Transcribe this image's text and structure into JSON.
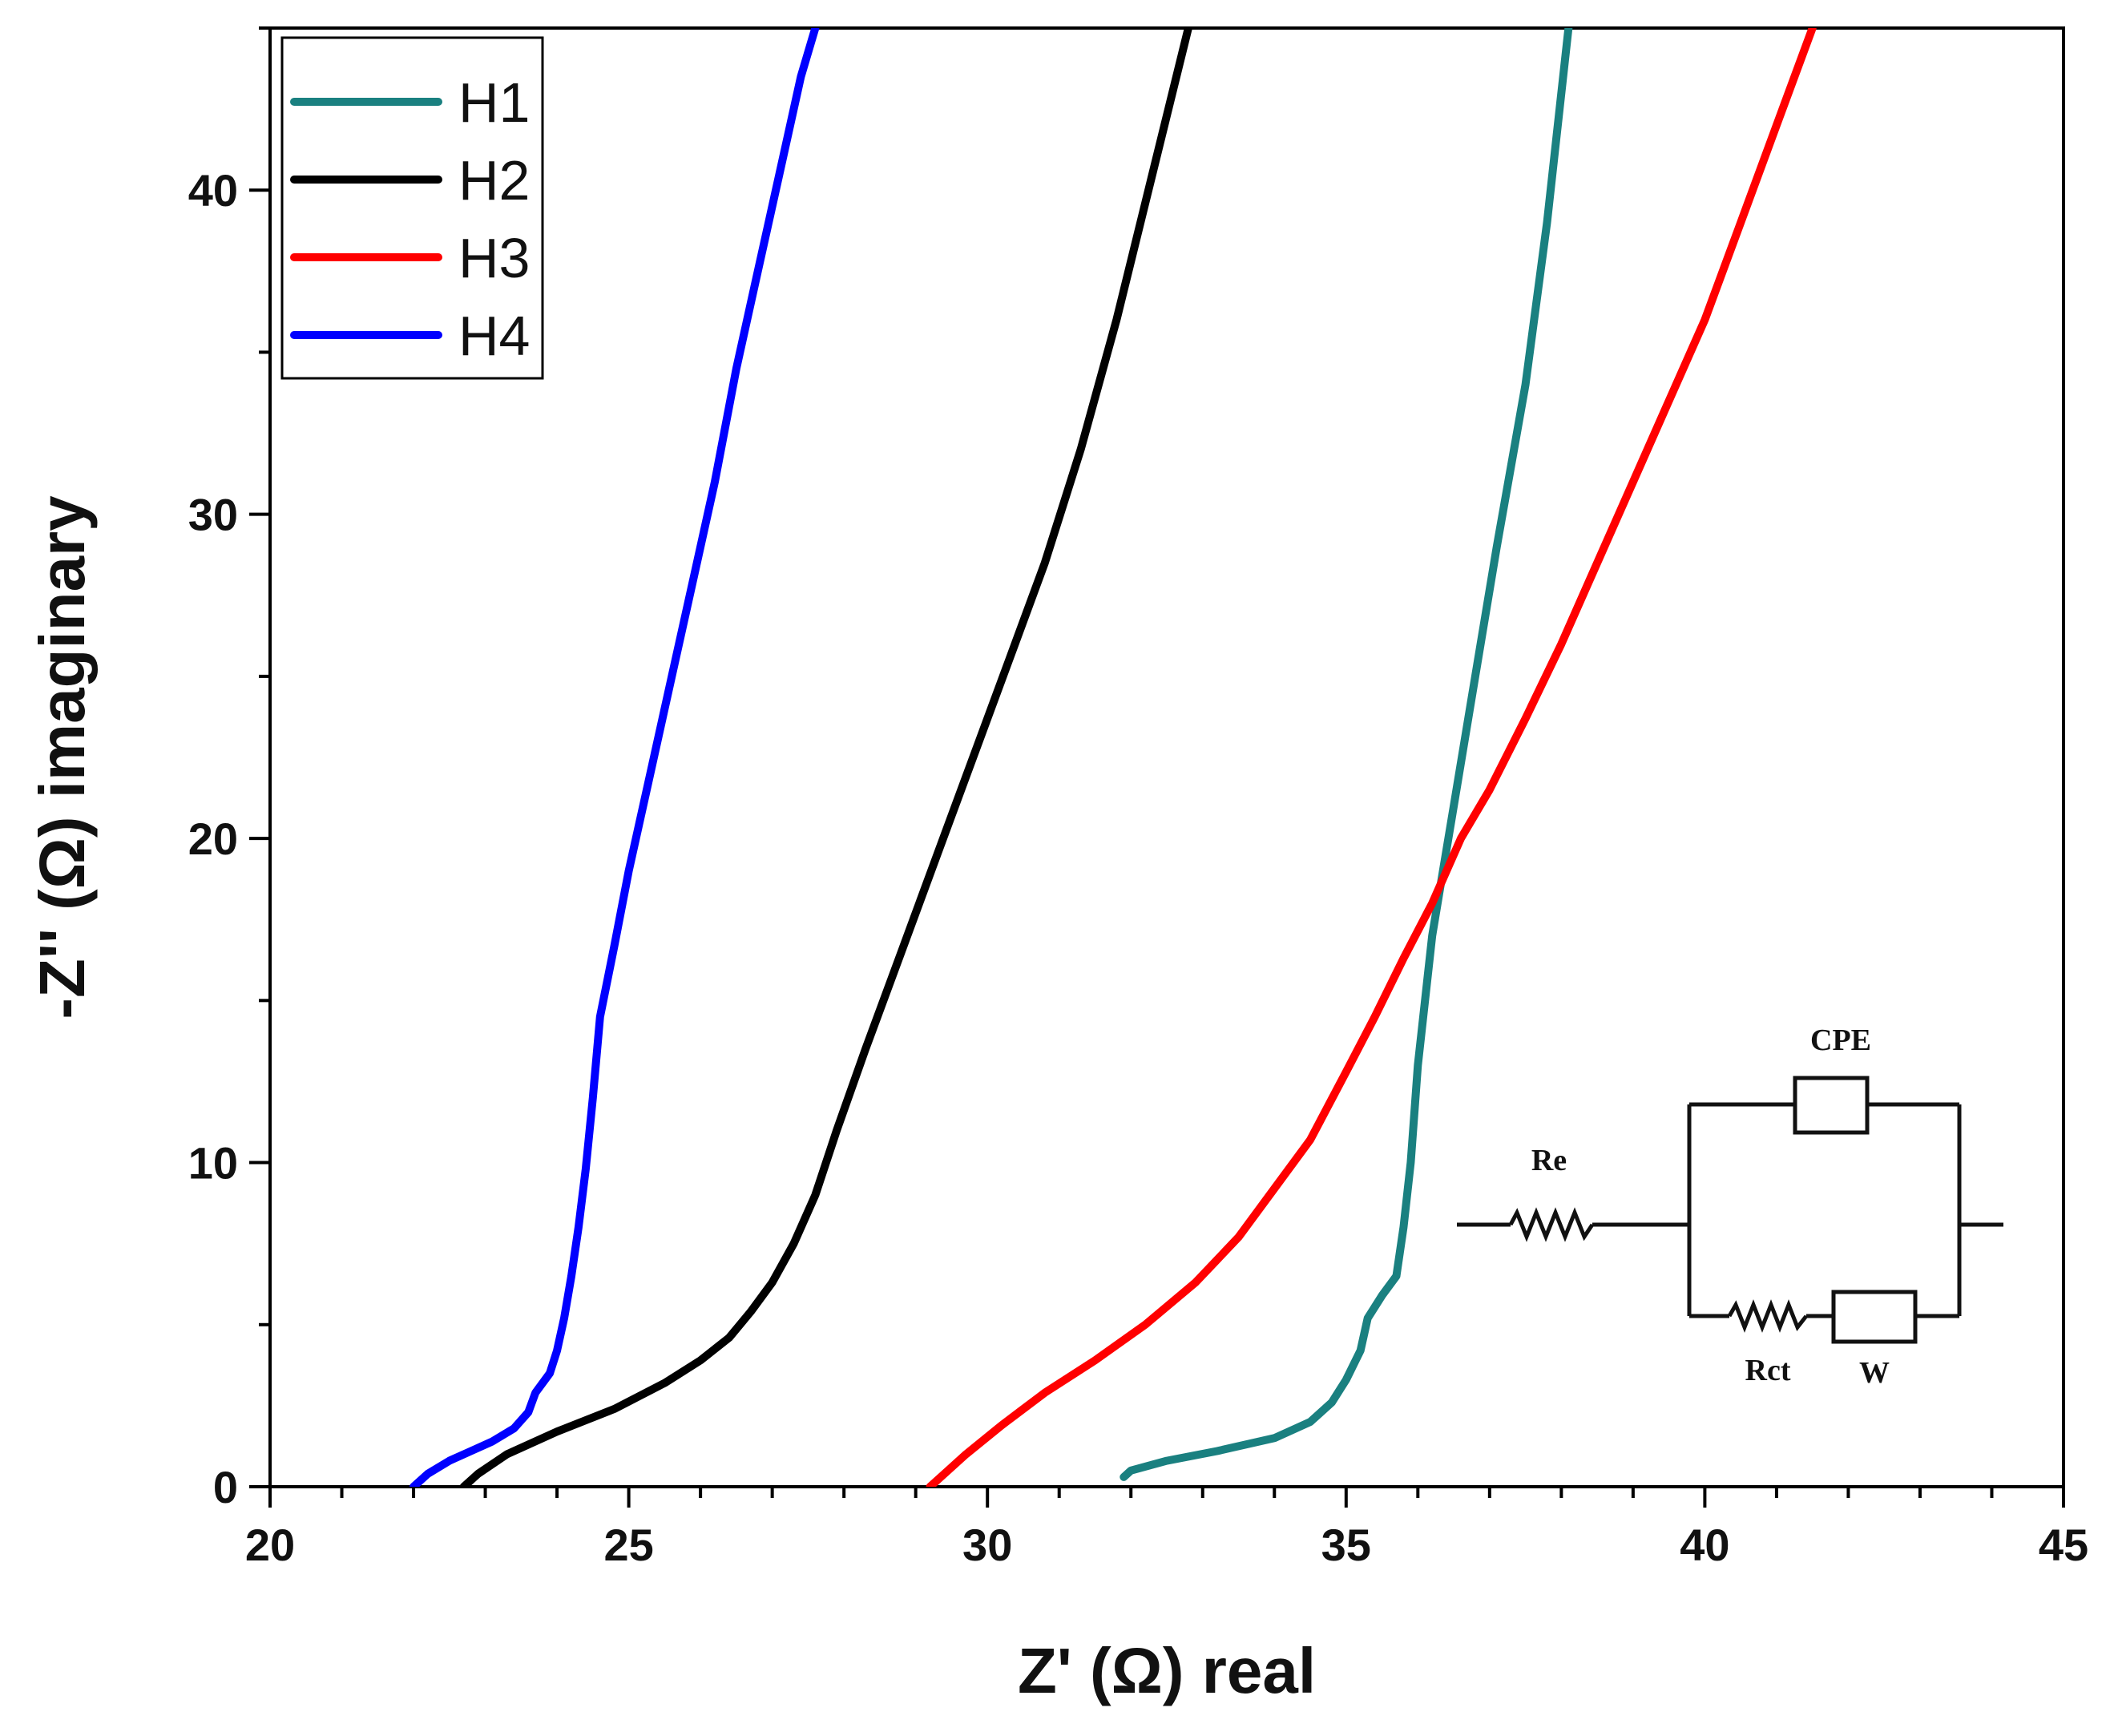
{
  "chart_data": {
    "type": "line",
    "title": "",
    "xlabel": "Z' (Ω) real",
    "ylabel": "-Z'' (Ω) imaginary",
    "xlim": [
      20,
      45
    ],
    "ylim": [
      0,
      45
    ],
    "x_ticks": [
      20,
      25,
      30,
      35,
      40,
      45
    ],
    "y_ticks": [
      0,
      10,
      20,
      30,
      40
    ],
    "x_tick_labels": [
      "20",
      "25",
      "30",
      "35",
      "40",
      "45"
    ],
    "y_tick_labels": [
      "0",
      "10",
      "20",
      "30",
      "40"
    ],
    "grid": false,
    "legend_position": "top-left",
    "series": [
      {
        "name": "H1",
        "color": "#1a8080",
        "points": [
          [
            31.9,
            0.3
          ],
          [
            32.0,
            0.5
          ],
          [
            32.5,
            0.8
          ],
          [
            33.2,
            1.1
          ],
          [
            34.0,
            1.5
          ],
          [
            34.5,
            2.0
          ],
          [
            34.8,
            2.6
          ],
          [
            35.0,
            3.3
          ],
          [
            35.2,
            4.2
          ],
          [
            35.3,
            5.2
          ],
          [
            35.5,
            5.9
          ],
          [
            35.7,
            6.5
          ],
          [
            35.8,
            8.0
          ],
          [
            35.9,
            10.0
          ],
          [
            36.0,
            13.0
          ],
          [
            36.2,
            17.0
          ],
          [
            36.5,
            21.0
          ],
          [
            36.8,
            25.0
          ],
          [
            37.1,
            29.0
          ],
          [
            37.5,
            34.0
          ],
          [
            37.8,
            39.0
          ],
          [
            38.1,
            45.0
          ]
        ]
      },
      {
        "name": "H2",
        "color": "#000000",
        "points": [
          [
            22.7,
            0.0
          ],
          [
            22.9,
            0.4
          ],
          [
            23.3,
            1.0
          ],
          [
            24.0,
            1.7
          ],
          [
            24.8,
            2.4
          ],
          [
            25.5,
            3.2
          ],
          [
            26.0,
            3.9
          ],
          [
            26.4,
            4.6
          ],
          [
            26.7,
            5.4
          ],
          [
            27.0,
            6.3
          ],
          [
            27.3,
            7.5
          ],
          [
            27.6,
            9.0
          ],
          [
            27.9,
            11.0
          ],
          [
            28.3,
            13.5
          ],
          [
            28.8,
            16.5
          ],
          [
            29.3,
            19.5
          ],
          [
            29.8,
            22.5
          ],
          [
            30.3,
            25.5
          ],
          [
            30.8,
            28.5
          ],
          [
            31.3,
            32.0
          ],
          [
            31.8,
            36.0
          ],
          [
            32.3,
            40.5
          ],
          [
            32.8,
            45.0
          ]
        ]
      },
      {
        "name": "H3",
        "color": "#ff0000",
        "points": [
          [
            29.2,
            0.0
          ],
          [
            29.4,
            0.4
          ],
          [
            29.7,
            1.0
          ],
          [
            30.2,
            1.9
          ],
          [
            30.8,
            2.9
          ],
          [
            31.5,
            3.9
          ],
          [
            32.2,
            5.0
          ],
          [
            32.9,
            6.3
          ],
          [
            33.5,
            7.7
          ],
          [
            34.0,
            9.2
          ],
          [
            34.5,
            10.7
          ],
          [
            35.0,
            12.8
          ],
          [
            35.4,
            14.5
          ],
          [
            35.8,
            16.3
          ],
          [
            36.2,
            18.0
          ],
          [
            36.6,
            20.0
          ],
          [
            37.0,
            21.5
          ],
          [
            37.5,
            23.7
          ],
          [
            38.0,
            26.0
          ],
          [
            38.5,
            28.5
          ],
          [
            39.0,
            31.0
          ],
          [
            39.5,
            33.5
          ],
          [
            40.0,
            36.0
          ],
          [
            40.5,
            39.0
          ],
          [
            41.0,
            42.0
          ],
          [
            41.5,
            45.0
          ]
        ]
      },
      {
        "name": "H4",
        "color": "#0000ff",
        "points": [
          [
            22.0,
            0.0
          ],
          [
            22.2,
            0.4
          ],
          [
            22.5,
            0.8
          ],
          [
            22.8,
            1.1
          ],
          [
            23.1,
            1.4
          ],
          [
            23.4,
            1.8
          ],
          [
            23.6,
            2.3
          ],
          [
            23.7,
            2.9
          ],
          [
            23.9,
            3.5
          ],
          [
            24.0,
            4.2
          ],
          [
            24.1,
            5.2
          ],
          [
            24.2,
            6.5
          ],
          [
            24.3,
            8.0
          ],
          [
            24.4,
            9.8
          ],
          [
            24.5,
            12.0
          ],
          [
            24.6,
            14.5
          ],
          [
            24.8,
            16.7
          ],
          [
            25.0,
            19.0
          ],
          [
            25.3,
            22.0
          ],
          [
            25.6,
            25.0
          ],
          [
            25.9,
            28.0
          ],
          [
            26.2,
            31.0
          ],
          [
            26.5,
            34.5
          ],
          [
            26.8,
            37.5
          ],
          [
            27.1,
            40.5
          ],
          [
            27.4,
            43.5
          ],
          [
            27.6,
            45.0
          ]
        ]
      }
    ],
    "inset_circuit": {
      "labels": {
        "re": "Re",
        "cpe": "CPE",
        "rct": "Rct",
        "w": "W"
      }
    }
  }
}
